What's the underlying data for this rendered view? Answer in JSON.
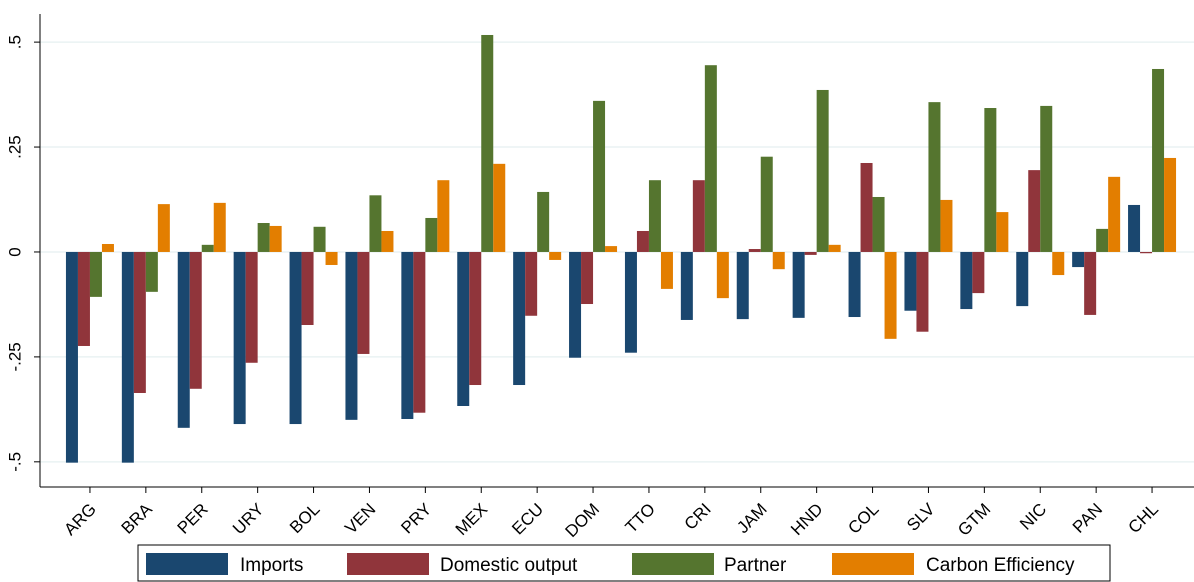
{
  "chart_data": {
    "type": "bar",
    "categories": [
      "ARG",
      "BRA",
      "PER",
      "URY",
      "BOL",
      "VEN",
      "PRY",
      "MEX",
      "ECU",
      "DOM",
      "TTO",
      "CRI",
      "JAM",
      "HND",
      "COL",
      "SLV",
      "GTM",
      "NIC",
      "PAN",
      "CHL"
    ],
    "series": [
      {
        "name": "Imports",
        "color": "#1a476f",
        "values": [
          -0.502,
          -0.502,
          -0.419,
          -0.41,
          -0.41,
          -0.4,
          -0.398,
          -0.367,
          -0.317,
          -0.252,
          -0.24,
          -0.162,
          -0.16,
          -0.157,
          -0.155,
          -0.14,
          -0.136,
          -0.129,
          -0.036,
          0.112
        ]
      },
      {
        "name": "Domestic output",
        "color": "#90353b",
        "values": [
          -0.224,
          -0.336,
          -0.326,
          -0.264,
          -0.174,
          -0.243,
          -0.383,
          -0.317,
          -0.152,
          -0.124,
          0.05,
          0.171,
          0.007,
          -0.007,
          0.212,
          -0.19,
          -0.098,
          0.195,
          -0.15,
          -0.003
        ]
      },
      {
        "name": "Partner",
        "color": "#55752f",
        "values": [
          -0.107,
          -0.095,
          0.017,
          0.069,
          0.06,
          0.135,
          0.081,
          0.517,
          0.143,
          0.36,
          0.171,
          0.445,
          0.227,
          0.386,
          0.131,
          0.357,
          0.343,
          0.348,
          0.055,
          0.436
        ]
      },
      {
        "name": "Carbon Efficiency",
        "color": "#e37e00",
        "values": [
          0.019,
          0.114,
          0.117,
          0.062,
          -0.031,
          0.05,
          0.171,
          0.21,
          -0.019,
          0.014,
          -0.088,
          -0.11,
          -0.041,
          0.017,
          -0.207,
          0.124,
          0.095,
          -0.055,
          0.179,
          0.224
        ]
      }
    ],
    "ylim": [
      -0.56,
      0.567
    ],
    "yticks": [
      {
        "value": -0.5,
        "label": "-.5"
      },
      {
        "value": -0.25,
        "label": "-.25"
      },
      0,
      {
        "value": 0.25,
        "label": ".25"
      },
      {
        "value": 0.5,
        "label": ".5"
      }
    ],
    "grid": true,
    "legend": "bottom"
  }
}
